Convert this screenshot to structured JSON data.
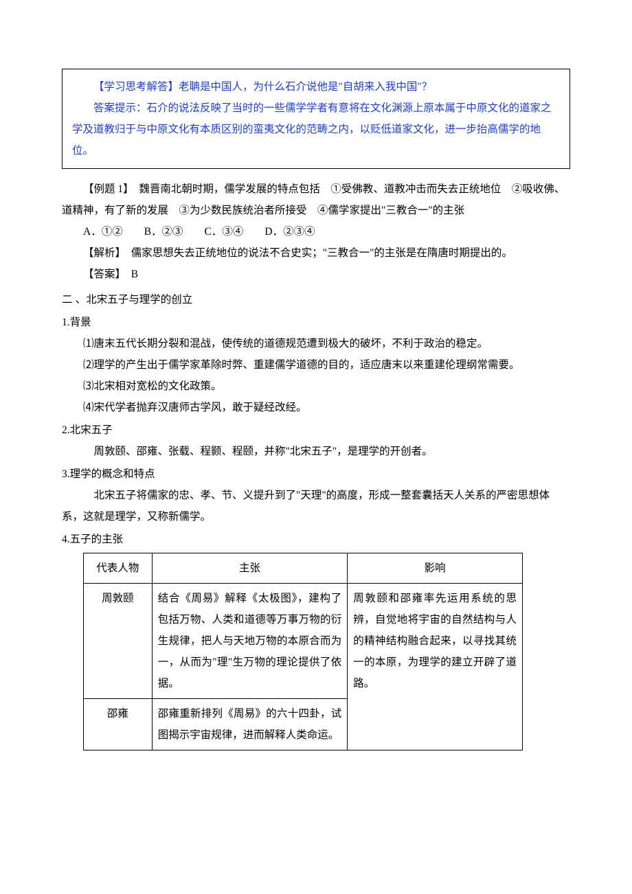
{
  "colors": {
    "text": "#000000",
    "accent_blue": "#1c3dcc",
    "background": "#ffffff",
    "border": "#000000"
  },
  "typography": {
    "body_font": "SimSun/宋体",
    "kai_font": "KaiTi/楷体",
    "hei_font": "SimHei/黑体",
    "body_size_pt": 12,
    "line_height": 2.0
  },
  "box": {
    "q_label": "【学习思考解答】",
    "q_text": "老聃是中国人，为什么石介说他是\"自胡来入我中国\"？",
    "a_label": "答案提示：",
    "a_text": "石介的说法反映了当时的一些儒学学者有意将在文化渊源上原本属于中原文化的道家之学及道教归于与中原文化有本质区别的蛮夷文化的范畴之内，以贬低道家文化，进一步抬高儒学的地位。"
  },
  "example1": {
    "label": "【例题 1】",
    "stem": "　魏晋南北朝时期，儒学发展的特点包括　①受佛教、道教冲击而失去正统地位　②吸收佛、道精神，有了新的发展　③为少数民族统治者所接受　④儒学家提出\"三教合一\"的主张",
    "options": "A．①②　　B．②③　　C．③④　　D．②③④",
    "analysis_label": "【解析】",
    "analysis": "　儒家思想失去正统地位的说法不合史实；\"三教合一\"的主张是在隋唐时期提出的。",
    "answer_label": "【答案】",
    "answer": "　B"
  },
  "section2": {
    "title": "二 、北宋五子与理学的创立",
    "s1": {
      "num": "1.背景",
      "items": [
        "⑴唐末五代长期分裂和混战，使传统的道德规范遭到极大的破坏，不利于政治的稳定。",
        "⑵理学的产生出于儒学家革除时弊、重建儒学道德的目的，适应唐末以来重建伦理纲常需要。",
        "⑶北宋相对宽松的文化政策。",
        "⑷宋代学者抛弃汉唐师古学风，敢于疑经改经。"
      ]
    },
    "s2": {
      "num": "2.北宋五子",
      "body": "周敦颐、邵雍、张载、程颢、程颐，并称\"北宋五子\"，是理学的开创者。"
    },
    "s3": {
      "num": "3.理学的概念和特点",
      "body": "北宋五子将儒家的忠、孝、节、义提升到了\"天理\"的高度，形成一整套囊括天人关系的严密思想体系，这就是理学，又称新儒学。"
    },
    "s4": {
      "num": "4.五子的主张",
      "table": {
        "headers": [
          "代表人物",
          "主张",
          "影响"
        ],
        "rows": [
          {
            "person": "周敦颐",
            "claim": "结合《周易》解释《太极图》，建构了包括万物、人类和道德等万事万物的衍生规律，把人与天地万物的本原合而为一，从而为\"理\"生万物的理论提供了依据。",
            "effect": "周敦颐和邵雍率先运用系统的思辨，自觉地将宇宙的自然结构与人的精神结构融合起来，以寻找其统一的本原，为理学的建立开辟了道路。",
            "rowspan_effect": 2
          },
          {
            "person": "邵雍",
            "claim": "邵雍重新排列《周易》的六十四卦，试图揭示宇宙规律，进而解释人类命运。"
          }
        ]
      }
    }
  }
}
